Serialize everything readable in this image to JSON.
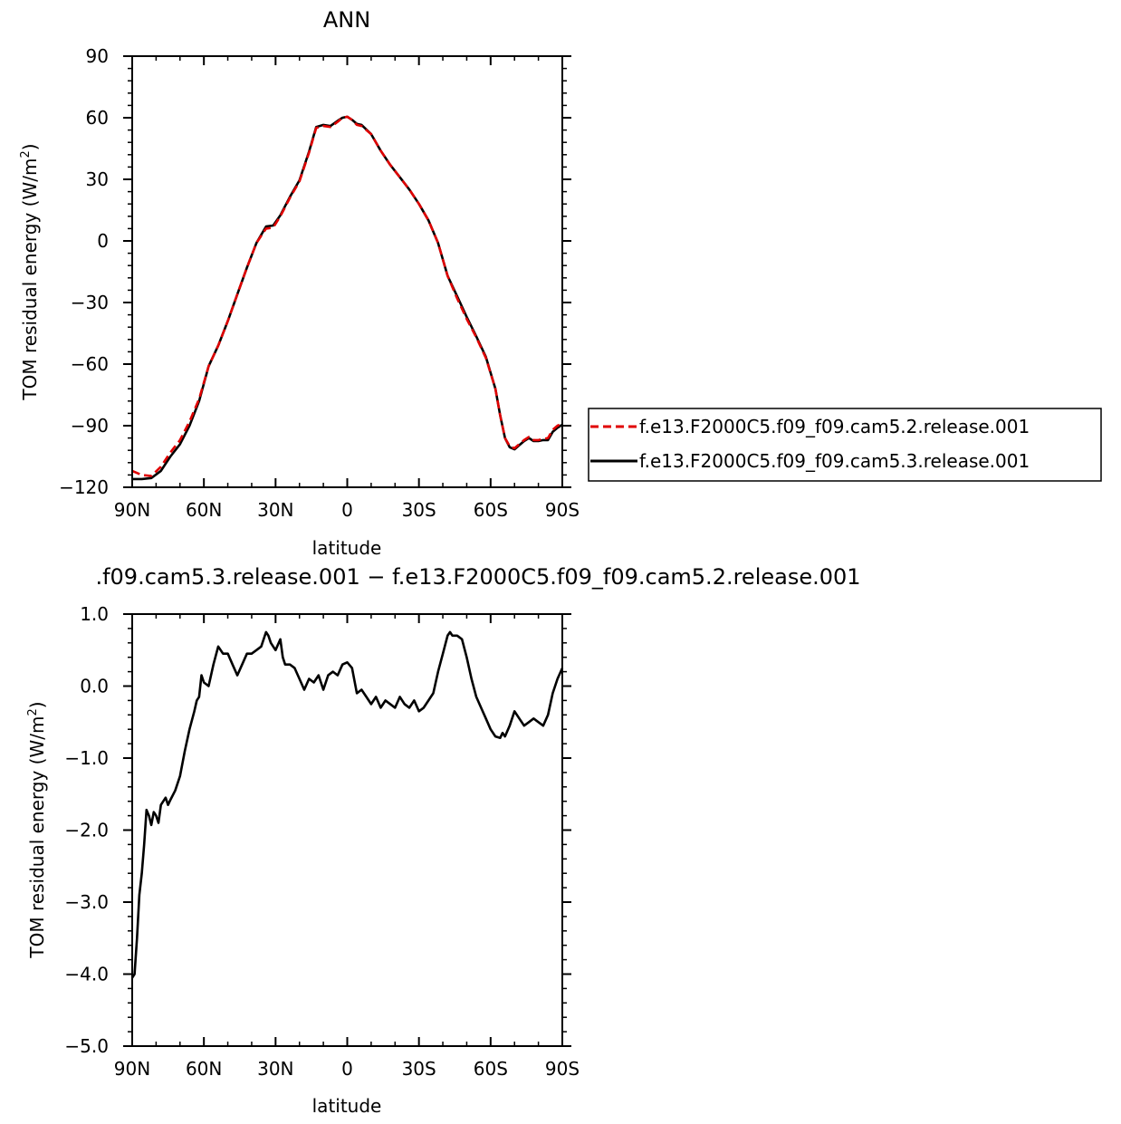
{
  "chart_data": [
    {
      "type": "line",
      "title": "ANN",
      "xlabel": "latitude",
      "ylabel": "TOM residual energy (W/m²)",
      "xlim": [
        90,
        -90
      ],
      "ylim": [
        -120,
        90
      ],
      "x_ticks": [
        {
          "value": 90,
          "label": "90N"
        },
        {
          "value": 60,
          "label": "60N"
        },
        {
          "value": 30,
          "label": "30N"
        },
        {
          "value": 0,
          "label": "0"
        },
        {
          "value": -30,
          "label": "30S"
        },
        {
          "value": -60,
          "label": "60S"
        },
        {
          "value": -90,
          "label": "90S"
        }
      ],
      "y_ticks": [
        {
          "value": 90,
          "label": "90"
        },
        {
          "value": 60,
          "label": "60"
        },
        {
          "value": 30,
          "label": "30"
        },
        {
          "value": 0,
          "label": "0"
        },
        {
          "value": -30,
          "label": "−30"
        },
        {
          "value": -60,
          "label": "−60"
        },
        {
          "value": -90,
          "label": "−90"
        },
        {
          "value": -120,
          "label": "−120"
        }
      ],
      "legend": "right",
      "series": [
        {
          "name": "f.e13.F2000C5.f09_f09.cam5.2.release.001",
          "color": "#e00000",
          "dash": "dashed",
          "x": [
            90,
            86,
            82,
            78,
            74,
            70,
            66,
            62,
            58,
            54,
            50,
            46,
            42,
            38,
            34,
            31,
            28,
            24,
            20,
            16,
            13,
            10,
            7,
            4,
            2,
            0,
            -2,
            -4,
            -6,
            -10,
            -14,
            -18,
            -22,
            -26,
            -30,
            -34,
            -38,
            -42,
            -46,
            -50,
            -54,
            -58,
            -62,
            -64,
            -66,
            -68,
            -70,
            -72,
            -74,
            -76,
            -78,
            -80,
            -82,
            -84,
            -86,
            -88,
            -90
          ],
          "values": [
            -112,
            -114,
            -114.5,
            -110,
            -103,
            -97,
            -88,
            -77,
            -61,
            -51,
            -39,
            -26,
            -13,
            -1,
            6,
            6.5,
            12,
            21,
            29,
            43,
            55,
            56,
            55.5,
            58,
            60,
            60.5,
            59,
            56.5,
            56,
            52,
            44,
            37,
            31,
            25,
            18,
            10,
            -1,
            -17,
            -28,
            -38,
            -47,
            -57,
            -72,
            -85,
            -96,
            -100,
            -101,
            -99,
            -97,
            -95.5,
            -97,
            -97,
            -96.5,
            -96,
            -92,
            -90,
            -89
          ]
        },
        {
          "name": "f.e13.F2000C5.f09_f09.cam5.3.release.001",
          "color": "#000000",
          "dash": "solid",
          "x": [
            90,
            86,
            82,
            78,
            74,
            70,
            66,
            62,
            58,
            54,
            50,
            46,
            42,
            38,
            34,
            31,
            28,
            24,
            20,
            16,
            13,
            10,
            7,
            4,
            2,
            0,
            -2,
            -4,
            -6,
            -10,
            -14,
            -18,
            -22,
            -26,
            -30,
            -34,
            -38,
            -42,
            -46,
            -50,
            -54,
            -58,
            -62,
            -64,
            -66,
            -68,
            -70,
            -72,
            -74,
            -76,
            -78,
            -80,
            -82,
            -84,
            -86,
            -88,
            -90
          ],
          "values": [
            -116,
            -116,
            -115.5,
            -112,
            -105,
            -99,
            -90,
            -78,
            -61,
            -51,
            -39,
            -26,
            -13,
            -1,
            7,
            7.5,
            12.5,
            21.5,
            29.5,
            43.5,
            55.5,
            56.5,
            56,
            58.5,
            60,
            60.5,
            59,
            57,
            56.5,
            52,
            44,
            37,
            31,
            25,
            18,
            10,
            -1,
            -17,
            -27,
            -37,
            -46.5,
            -56.5,
            -72,
            -85,
            -96,
            -100.5,
            -101.5,
            -99.5,
            -97.5,
            -96,
            -97.5,
            -97.5,
            -97,
            -97,
            -93,
            -91,
            -89.5
          ]
        }
      ]
    },
    {
      "type": "line",
      "title": ".f09.cam5.3.release.001 − f.e13.F2000C5.f09_f09.cam5.2.release.001",
      "xlabel": "latitude",
      "ylabel": "TOM residual energy (W/m²)",
      "xlim": [
        90,
        -90
      ],
      "ylim": [
        -5.0,
        1.0
      ],
      "x_ticks": [
        {
          "value": 90,
          "label": "90N"
        },
        {
          "value": 60,
          "label": "60N"
        },
        {
          "value": 30,
          "label": "30N"
        },
        {
          "value": 0,
          "label": "0"
        },
        {
          "value": -30,
          "label": "30S"
        },
        {
          "value": -60,
          "label": "60S"
        },
        {
          "value": -90,
          "label": "90S"
        }
      ],
      "y_ticks": [
        {
          "value": 1.0,
          "label": "1.0"
        },
        {
          "value": 0.0,
          "label": "0.0"
        },
        {
          "value": -1.0,
          "label": "−1.0"
        },
        {
          "value": -2.0,
          "label": "−2.0"
        },
        {
          "value": -3.0,
          "label": "−3.0"
        },
        {
          "value": -4.0,
          "label": "−4.0"
        },
        {
          "value": -5.0,
          "label": "−5.0"
        }
      ],
      "series": [
        {
          "color": "#000000",
          "dash": "solid",
          "x": [
            90,
            89,
            88,
            87,
            86,
            85,
            84,
            83,
            82,
            81,
            80,
            79,
            78,
            77,
            76,
            75,
            74,
            72,
            70,
            68,
            66,
            64,
            63,
            62,
            61,
            60,
            58,
            56,
            54,
            52,
            50,
            48,
            46,
            44,
            42,
            40,
            38,
            36,
            34,
            33,
            32,
            30,
            28,
            27,
            26,
            24,
            22,
            20,
            18,
            16,
            14,
            12,
            10,
            8,
            6,
            4,
            2,
            0,
            -2,
            -4,
            -6,
            -8,
            -10,
            -12,
            -14,
            -16,
            -18,
            -20,
            -22,
            -24,
            -26,
            -28,
            -30,
            -32,
            -34,
            -36,
            -38,
            -40,
            -42,
            -43,
            -44,
            -46,
            -48,
            -50,
            -52,
            -54,
            -56,
            -58,
            -60,
            -62,
            -64,
            -65,
            -66,
            -68,
            -70,
            -72,
            -74,
            -76,
            -78,
            -80,
            -82,
            -84,
            -86,
            -88,
            -90
          ],
          "values": [
            -4.05,
            -4.0,
            -3.5,
            -2.9,
            -2.6,
            -2.2,
            -1.72,
            -1.8,
            -1.93,
            -1.75,
            -1.8,
            -1.9,
            -1.65,
            -1.6,
            -1.55,
            -1.65,
            -1.58,
            -1.45,
            -1.25,
            -0.9,
            -0.6,
            -0.35,
            -0.2,
            -0.15,
            0.15,
            0.05,
            0.0,
            0.3,
            0.55,
            0.45,
            0.45,
            0.3,
            0.15,
            0.3,
            0.45,
            0.45,
            0.5,
            0.55,
            0.75,
            0.7,
            0.6,
            0.5,
            0.65,
            0.4,
            0.3,
            0.3,
            0.25,
            0.1,
            -0.05,
            0.1,
            0.05,
            0.15,
            -0.05,
            0.15,
            0.2,
            0.15,
            0.3,
            0.33,
            0.25,
            -0.1,
            -0.05,
            -0.15,
            -0.25,
            -0.15,
            -0.3,
            -0.2,
            -0.25,
            -0.3,
            -0.15,
            -0.25,
            -0.3,
            -0.2,
            -0.35,
            -0.3,
            -0.2,
            -0.1,
            0.2,
            0.45,
            0.7,
            0.75,
            0.7,
            0.7,
            0.65,
            0.4,
            0.1,
            -0.15,
            -0.3,
            -0.45,
            -0.6,
            -0.7,
            -0.72,
            -0.65,
            -0.7,
            -0.55,
            -0.35,
            -0.45,
            -0.55,
            -0.5,
            -0.45,
            -0.5,
            -0.55,
            -0.4,
            -0.1,
            0.1,
            0.25
          ]
        }
      ]
    }
  ]
}
